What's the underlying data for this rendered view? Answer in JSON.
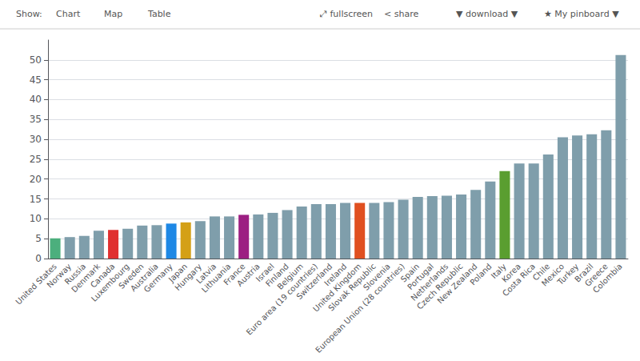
{
  "chart_data": {
    "type": "bar",
    "annotations": [
      "Show:",
      "Chart",
      "Map",
      "Table",
      "⤢ fullscreen",
      "< share",
      "▼ download ▼",
      "★ My pinboard ▼"
    ],
    "categories": [
      "United States",
      "Norway",
      "Russia",
      "Denmark",
      "Canada",
      "Luxembourg",
      "Sweden",
      "Australia",
      "Germany",
      "Japan",
      "Hungary",
      "Latvia",
      "Lithuania",
      "France",
      "Austria",
      "Israel",
      "Finland",
      "Belgium",
      "Euro area (19 countries)",
      "Switzerland",
      "Ireland",
      "United Kingdom",
      "Slovak Republic",
      "Slovenia",
      "European Union (28 countries)",
      "Spain",
      "Portugal",
      "Netherlands",
      "Czech Republic",
      "New Zealand",
      "Poland",
      "Italy",
      "Korea",
      "Costa Rica",
      "Chile",
      "Mexico",
      "Turkey",
      "Brazil",
      "Greece",
      "Colombia"
    ],
    "values": [
      5.1,
      5.4,
      5.7,
      7.0,
      7.2,
      7.5,
      8.3,
      8.4,
      8.8,
      9.1,
      9.4,
      10.6,
      10.6,
      11.0,
      11.1,
      11.5,
      12.2,
      13.1,
      13.7,
      13.7,
      14.0,
      14.0,
      14.0,
      14.2,
      14.8,
      15.5,
      15.7,
      15.8,
      16.1,
      17.3,
      19.4,
      22.0,
      23.9,
      23.9,
      26.2,
      30.5,
      31.0,
      31.3,
      32.3,
      51.2
    ],
    "colors": [
      "#4caf7d",
      "#7f9eab",
      "#7f9eab",
      "#7f9eab",
      "#e03030",
      "#7f9eab",
      "#7f9eab",
      "#7f9eab",
      "#1e88e5",
      "#d4a017",
      "#7f9eab",
      "#7f9eab",
      "#7f9eab",
      "#9c1f82",
      "#7f9eab",
      "#7f9eab",
      "#7f9eab",
      "#7f9eab",
      "#7f9eab",
      "#7f9eab",
      "#7f9eab",
      "#e05020",
      "#7f9eab",
      "#7f9eab",
      "#7f9eab",
      "#7f9eab",
      "#7f9eab",
      "#7f9eab",
      "#7f9eab",
      "#7f9eab",
      "#7f9eab",
      "#5a9e30",
      "#7f9eab",
      "#7f9eab",
      "#7f9eab",
      "#7f9eab",
      "#7f9eab",
      "#7f9eab",
      "#7f9eab",
      "#7f9eab"
    ],
    "ylim": [
      0,
      55
    ],
    "yticks": [
      0,
      5,
      10,
      15,
      20,
      25,
      30,
      35,
      40,
      45,
      50
    ],
    "grid": true
  }
}
